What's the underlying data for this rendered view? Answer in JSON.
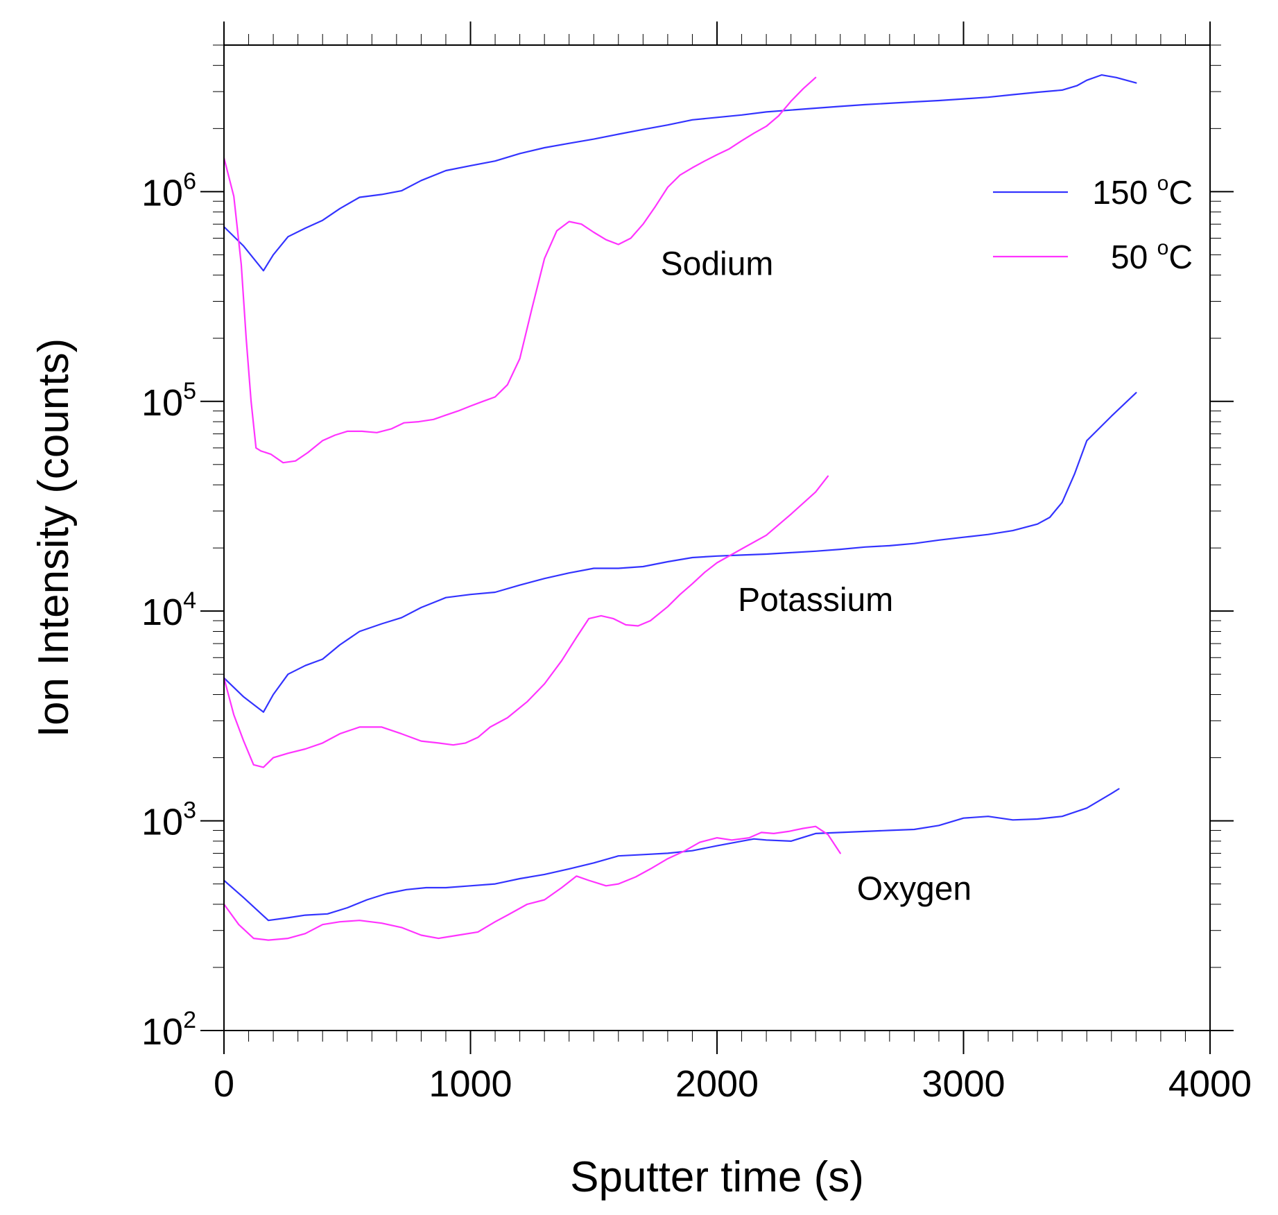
{
  "chart_data": {
    "type": "line",
    "title": "",
    "xlabel": "Sputter time (s)",
    "ylabel": "Ion Intensity (counts)",
    "xlim": [
      0,
      4000
    ],
    "ylim": [
      100,
      5000000
    ],
    "yscale": "log",
    "x_ticks": [
      {
        "value": 0,
        "label": "0"
      },
      {
        "value": 1000,
        "label": "1000"
      },
      {
        "value": 2000,
        "label": "2000"
      },
      {
        "value": 3000,
        "label": "3000"
      },
      {
        "value": 4000,
        "label": "4000"
      }
    ],
    "y_ticks": [
      {
        "value": 100,
        "base": "10",
        "exp": "2"
      },
      {
        "value": 1000,
        "base": "10",
        "exp": "3"
      },
      {
        "value": 10000,
        "base": "10",
        "exp": "4"
      },
      {
        "value": 100000,
        "base": "10",
        "exp": "5"
      },
      {
        "value": 1000000,
        "base": "10",
        "exp": "6"
      }
    ],
    "legend": {
      "position": "top-right",
      "entries": [
        {
          "label": "150 ",
          "superscript": "o",
          "unit": "C",
          "color": "#3333ff"
        },
        {
          "label": "50 ",
          "superscript": "o",
          "unit": "C",
          "color": "#ff33ff"
        }
      ]
    },
    "annotations": [
      {
        "text": "Sodium",
        "x": 2000,
        "y": 400000
      },
      {
        "text": "Potassium",
        "x": 2400,
        "y": 10000
      },
      {
        "text": "Oxygen",
        "x": 2800,
        "y": 420
      }
    ],
    "series": [
      {
        "name": "Sodium 150 °C",
        "group": "150 °C",
        "color": "#3333ff",
        "x": [
          0,
          80,
          160,
          200,
          260,
          330,
          400,
          470,
          550,
          640,
          720,
          800,
          900,
          1000,
          1100,
          1200,
          1300,
          1400,
          1500,
          1600,
          1700,
          1800,
          1900,
          2000,
          2100,
          2200,
          2300,
          2400,
          2500,
          2600,
          2700,
          2800,
          2900,
          3000,
          3100,
          3200,
          3300,
          3400,
          3460,
          3500,
          3560,
          3620,
          3700
        ],
        "y": [
          680000,
          550000,
          420000,
          500000,
          610000,
          670000,
          730000,
          830000,
          940000,
          970000,
          1010000,
          1130000,
          1260000,
          1330000,
          1400000,
          1520000,
          1620000,
          1700000,
          1780000,
          1880000,
          1980000,
          2080000,
          2200000,
          2260000,
          2320000,
          2400000,
          2450000,
          2500000,
          2550000,
          2600000,
          2640000,
          2680000,
          2720000,
          2770000,
          2820000,
          2900000,
          2980000,
          3050000,
          3200000,
          3400000,
          3600000,
          3500000,
          3300000
        ]
      },
      {
        "name": "Sodium 50 °C",
        "group": "50 °C",
        "color": "#ff33ff",
        "x": [
          0,
          40,
          70,
          90,
          110,
          130,
          150,
          190,
          240,
          290,
          340,
          400,
          450,
          500,
          560,
          620,
          680,
          730,
          790,
          850,
          900,
          950,
          1000,
          1050,
          1100,
          1150,
          1200,
          1250,
          1300,
          1350,
          1400,
          1450,
          1500,
          1550,
          1600,
          1650,
          1700,
          1750,
          1800,
          1850,
          1900,
          1950,
          2000,
          2050,
          2100,
          2150,
          2200,
          2250,
          2300,
          2350,
          2400
        ],
        "y": [
          1450000,
          950000,
          450000,
          200000,
          100000,
          60000,
          58000,
          56000,
          51000,
          52000,
          57000,
          65000,
          69000,
          72000,
          72000,
          71000,
          74000,
          79000,
          80000,
          82000,
          86000,
          90000,
          95000,
          100000,
          105000,
          120000,
          160000,
          280000,
          480000,
          650000,
          720000,
          700000,
          640000,
          590000,
          560000,
          600000,
          700000,
          850000,
          1050000,
          1200000,
          1300000,
          1400000,
          1500000,
          1600000,
          1750000,
          1900000,
          2050000,
          2300000,
          2700000,
          3100000,
          3500000
        ]
      },
      {
        "name": "Potassium 150 °C",
        "group": "150 °C",
        "color": "#3333ff",
        "x": [
          0,
          80,
          160,
          200,
          260,
          330,
          400,
          470,
          550,
          640,
          720,
          800,
          900,
          1000,
          1100,
          1200,
          1300,
          1400,
          1500,
          1600,
          1700,
          1800,
          1900,
          2000,
          2100,
          2200,
          2300,
          2400,
          2500,
          2600,
          2700,
          2800,
          2900,
          3000,
          3100,
          3200,
          3300,
          3350,
          3400,
          3450,
          3500,
          3600,
          3700
        ],
        "y": [
          4800,
          3900,
          3300,
          4000,
          5000,
          5500,
          5900,
          6900,
          8000,
          8700,
          9300,
          10400,
          11600,
          12000,
          12300,
          13300,
          14300,
          15200,
          16000,
          16000,
          16300,
          17200,
          18000,
          18300,
          18500,
          18700,
          19000,
          19300,
          19700,
          20200,
          20500,
          21000,
          21800,
          22500,
          23200,
          24200,
          26000,
          28000,
          33000,
          45000,
          65000,
          85000,
          110000
        ]
      },
      {
        "name": "Potassium 50 °C",
        "group": "50 °C",
        "color": "#ff33ff",
        "x": [
          0,
          40,
          80,
          120,
          160,
          200,
          260,
          330,
          400,
          470,
          550,
          640,
          720,
          800,
          870,
          930,
          980,
          1030,
          1080,
          1150,
          1230,
          1300,
          1370,
          1430,
          1480,
          1530,
          1580,
          1630,
          1680,
          1730,
          1800,
          1850,
          1900,
          1950,
          2000,
          2100,
          2200,
          2300,
          2400,
          2450
        ],
        "y": [
          4800,
          3200,
          2400,
          1850,
          1800,
          2000,
          2100,
          2200,
          2350,
          2600,
          2800,
          2800,
          2600,
          2400,
          2350,
          2300,
          2350,
          2500,
          2800,
          3100,
          3700,
          4500,
          5800,
          7500,
          9200,
          9500,
          9200,
          8600,
          8500,
          9000,
          10500,
          12000,
          13500,
          15300,
          17000,
          19800,
          23000,
          29000,
          37000,
          44000
        ]
      },
      {
        "name": "Oxygen 150 °C",
        "group": "150 °C",
        "color": "#3333ff",
        "x": [
          0,
          80,
          180,
          260,
          330,
          420,
          500,
          580,
          660,
          740,
          820,
          900,
          1000,
          1100,
          1200,
          1300,
          1400,
          1500,
          1600,
          1700,
          1800,
          1900,
          2000,
          2100,
          2150,
          2200,
          2300,
          2400,
          2500,
          2600,
          2700,
          2800,
          2900,
          3000,
          3100,
          3200,
          3300,
          3400,
          3500,
          3600,
          3630
        ],
        "y": [
          520,
          430,
          335,
          345,
          355,
          360,
          385,
          420,
          450,
          470,
          480,
          480,
          490,
          500,
          530,
          555,
          590,
          630,
          680,
          690,
          700,
          720,
          760,
          800,
          820,
          810,
          800,
          870,
          880,
          890,
          900,
          910,
          950,
          1030,
          1050,
          1010,
          1020,
          1050,
          1150,
          1350,
          1420
        ]
      },
      {
        "name": "Oxygen 50 °C",
        "group": "50 °C",
        "color": "#ff33ff",
        "x": [
          0,
          60,
          120,
          180,
          260,
          330,
          400,
          470,
          550,
          640,
          720,
          800,
          870,
          950,
          1030,
          1100,
          1150,
          1230,
          1300,
          1370,
          1430,
          1480,
          1550,
          1600,
          1670,
          1730,
          1800,
          1870,
          1930,
          2000,
          2060,
          2130,
          2180,
          2230,
          2290,
          2350,
          2400,
          2450,
          2500
        ],
        "y": [
          400,
          320,
          275,
          270,
          275,
          290,
          320,
          330,
          335,
          325,
          310,
          285,
          275,
          285,
          295,
          330,
          355,
          400,
          420,
          480,
          545,
          520,
          490,
          500,
          540,
          590,
          660,
          720,
          790,
          830,
          810,
          830,
          880,
          870,
          890,
          920,
          940,
          860,
          700
        ]
      }
    ]
  }
}
